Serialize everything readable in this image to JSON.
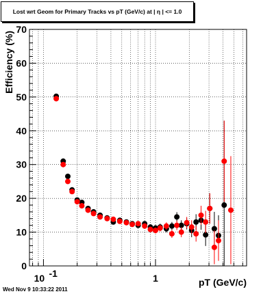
{
  "title": "Lost wrt Geom for Primary Tracks vs pT (GeV/c) at |  η | <= 1.0",
  "timestamp": "Wed Nov  9 10:33:22 2011",
  "chart_data": {
    "type": "scatter",
    "xlabel": "pT (GeV/c)",
    "ylabel": "Efficiency (%)",
    "xscale": "log",
    "xlim": [
      0.075,
      6.5
    ],
    "ylim": [
      0,
      70
    ],
    "grid": true,
    "x_tick_labels": [
      {
        "value": 0.1,
        "base": "10",
        "exp": "-1"
      },
      {
        "value": 1,
        "base": "1",
        "exp": ""
      }
    ],
    "y_ticks": [
      0,
      10,
      20,
      30,
      40,
      50,
      60,
      70
    ],
    "series": [
      {
        "color": "#000000",
        "points": [
          [
            0.13,
            50.2,
            0.8
          ],
          [
            0.15,
            31.0,
            0.8
          ],
          [
            0.165,
            26.5,
            0.8
          ],
          [
            0.18,
            22.5,
            0.7
          ],
          [
            0.2,
            19.5,
            0.6
          ],
          [
            0.22,
            18.8,
            0.6
          ],
          [
            0.25,
            17.0,
            0.5
          ],
          [
            0.28,
            16.0,
            0.5
          ],
          [
            0.32,
            15.0,
            0.5
          ],
          [
            0.37,
            14.2,
            0.5
          ],
          [
            0.42,
            13.0,
            0.5
          ],
          [
            0.48,
            13.5,
            0.5
          ],
          [
            0.55,
            13.0,
            0.5
          ],
          [
            0.62,
            12.5,
            0.6
          ],
          [
            0.7,
            12.0,
            0.6
          ],
          [
            0.8,
            12.5,
            0.7
          ],
          [
            0.9,
            11.5,
            0.8
          ],
          [
            1.0,
            11.2,
            0.9
          ],
          [
            1.1,
            11.5,
            1.0
          ],
          [
            1.25,
            11.0,
            1.1
          ],
          [
            1.4,
            11.8,
            1.2
          ],
          [
            1.55,
            14.5,
            1.4
          ],
          [
            1.7,
            12.0,
            1.5
          ],
          [
            1.9,
            12.5,
            1.7
          ],
          [
            2.1,
            10.5,
            2.0
          ],
          [
            2.3,
            13.0,
            2.3
          ],
          [
            2.55,
            13.5,
            2.8
          ],
          [
            2.8,
            9.2,
            3.3
          ],
          [
            3.05,
            17.0,
            4.5
          ],
          [
            3.35,
            11.0,
            5.0
          ],
          [
            3.65,
            9.0,
            6.0
          ],
          [
            4.1,
            18.0,
            25.0
          ]
        ]
      },
      {
        "color": "#ff0000",
        "points": [
          [
            0.13,
            49.5,
            0.8
          ],
          [
            0.15,
            30.0,
            0.8
          ],
          [
            0.165,
            25.0,
            0.8
          ],
          [
            0.18,
            22.0,
            0.7
          ],
          [
            0.2,
            19.0,
            0.6
          ],
          [
            0.22,
            17.8,
            0.6
          ],
          [
            0.25,
            16.5,
            0.5
          ],
          [
            0.28,
            15.5,
            0.5
          ],
          [
            0.32,
            14.5,
            0.5
          ],
          [
            0.37,
            14.0,
            0.5
          ],
          [
            0.42,
            13.8,
            0.5
          ],
          [
            0.48,
            13.2,
            0.5
          ],
          [
            0.55,
            12.8,
            0.5
          ],
          [
            0.62,
            12.3,
            0.6
          ],
          [
            0.7,
            12.5,
            0.6
          ],
          [
            0.8,
            11.8,
            0.7
          ],
          [
            0.9,
            10.8,
            0.8
          ],
          [
            1.0,
            10.5,
            0.9
          ],
          [
            1.1,
            11.2,
            1.0
          ],
          [
            1.25,
            11.8,
            1.1
          ],
          [
            1.4,
            9.5,
            1.2
          ],
          [
            1.55,
            12.0,
            1.4
          ],
          [
            1.7,
            10.0,
            1.5
          ],
          [
            1.9,
            12.8,
            1.7
          ],
          [
            2.1,
            11.5,
            2.0
          ],
          [
            2.3,
            9.5,
            2.3
          ],
          [
            2.55,
            15.0,
            2.8
          ],
          [
            2.8,
            13.0,
            3.3
          ],
          [
            3.05,
            17.0,
            4.5
          ],
          [
            3.35,
            5.5,
            5.0
          ],
          [
            3.65,
            7.5,
            6.0
          ],
          [
            4.1,
            31.0,
            12.0
          ],
          [
            4.7,
            16.5,
            16.0
          ]
        ]
      }
    ]
  }
}
